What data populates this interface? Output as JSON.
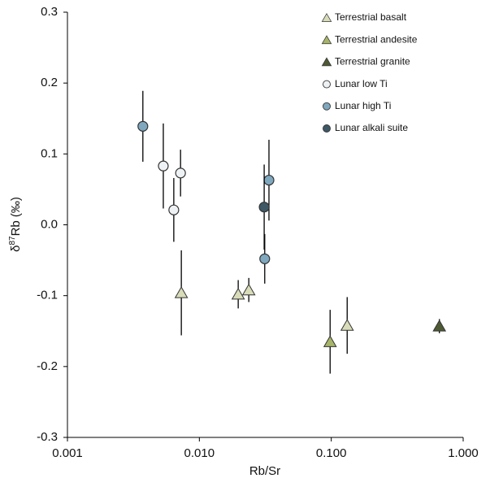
{
  "chart_data": {
    "type": "scatter",
    "x_label": "Rb/Sr",
    "y_label": {
      "prefix": "δ",
      "sup": "87",
      "main": "Rb (‰)"
    },
    "xscale": "log",
    "xlim": [
      0.001,
      1
    ],
    "ylim": [
      -0.3,
      0.3
    ],
    "xticks": [
      {
        "value": 0.001,
        "label": "0.001"
      },
      {
        "value": 0.01,
        "label": "0.010"
      },
      {
        "value": 0.1,
        "label": "0.100"
      },
      {
        "value": 1,
        "label": "1.000"
      }
    ],
    "yticks": [
      0.3,
      0.2,
      0.1,
      {
        "value": 0,
        "label": "0.0"
      },
      -0.1,
      -0.2,
      -0.3
    ],
    "legend": "top-right",
    "series": [
      {
        "name": "Terrestrial basalt",
        "marker": "triangle",
        "color": "#d9dcb8",
        "x": [
          0.0073,
          0.0197,
          0.0237,
          0.132
        ],
        "values": [
          -0.096,
          -0.098,
          -0.092,
          -0.142
        ],
        "errors": [
          0.06,
          0.02,
          0.017,
          0.04
        ]
      },
      {
        "name": "Terrestrial andesite",
        "marker": "triangle",
        "color": "#a7b56a",
        "x": [
          0.098
        ],
        "values": [
          -0.165
        ],
        "errors": [
          0.045
        ]
      },
      {
        "name": "Terrestrial granite",
        "marker": "triangle",
        "color": "#4f5a35",
        "x": [
          0.66
        ],
        "values": [
          -0.143
        ],
        "errors": [
          0.01
        ]
      },
      {
        "name": "Lunar low Ti",
        "marker": "circle",
        "color": "#eef2f5",
        "x": [
          0.00533,
          0.0072,
          0.0064
        ],
        "values": [
          0.083,
          0.073,
          0.021
        ],
        "errors": [
          0.06,
          0.033,
          0.045
        ]
      },
      {
        "name": "Lunar high Ti",
        "marker": "circle",
        "color": "#7fa8bf",
        "x": [
          0.00373,
          0.0337,
          0.0313
        ],
        "values": [
          0.139,
          0.063,
          -0.048
        ],
        "errors": [
          0.05,
          0.057,
          0.035
        ]
      },
      {
        "name": "Lunar alkali suite",
        "marker": "circle",
        "color": "#3f5866",
        "x": [
          0.031
        ],
        "values": [
          0.025
        ],
        "errors": [
          0.06
        ]
      }
    ]
  }
}
